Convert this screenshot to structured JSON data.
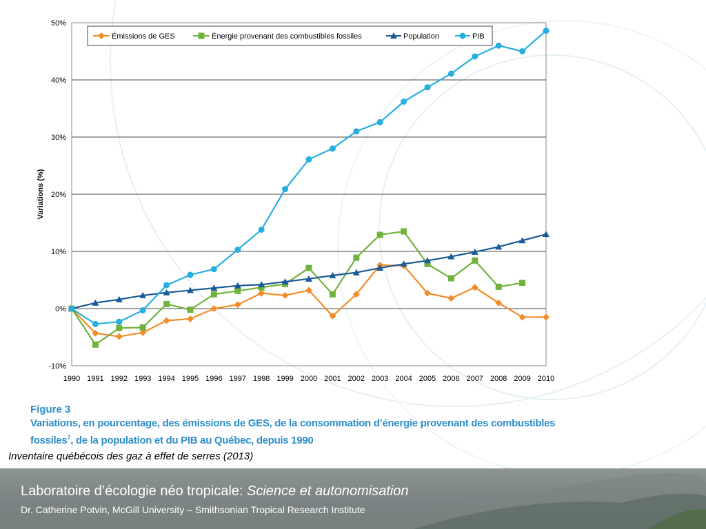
{
  "chart_data": {
    "type": "line",
    "ylabel": "Variations (%)",
    "xlabel": "",
    "ylim": [
      -10,
      50
    ],
    "yticks": [
      -10,
      0,
      10,
      20,
      30,
      40,
      50
    ],
    "ytick_labels": [
      "-10%",
      "0%",
      "10%",
      "20%",
      "30%",
      "40%",
      "50%"
    ],
    "grid": "horizontal",
    "legend_position": "top",
    "x": [
      "1990",
      "1991",
      "1992",
      "1993",
      "1994",
      "1995",
      "1996",
      "1997",
      "1998",
      "1999",
      "2000",
      "2001",
      "2002",
      "2003",
      "2004",
      "2005",
      "2006",
      "2007",
      "2008",
      "2009",
      "2010"
    ],
    "series": [
      {
        "name": "Émissions de GES",
        "color": "#f28c28",
        "marker": "diamond",
        "values": [
          0,
          -4.3,
          -4.9,
          -4.2,
          -2.1,
          -1.8,
          0,
          0.7,
          2.7,
          2.3,
          3.2,
          -1.3,
          2.5,
          7.6,
          7.5,
          2.7,
          1.8,
          3.7,
          1.0,
          -1.5,
          -1.5
        ]
      },
      {
        "name": "Énergie provenant des combustibles fossiles",
        "color": "#70b33c",
        "marker": "square",
        "values": [
          0,
          -6.3,
          -3.4,
          -3.3,
          0.8,
          -0.2,
          2.5,
          3.1,
          3.7,
          4.3,
          7.1,
          2.5,
          8.9,
          12.9,
          13.5,
          7.8,
          5.3,
          8.4,
          3.8,
          4.5,
          null
        ]
      },
      {
        "name": "Population",
        "color": "#1a5a96",
        "marker": "triangle",
        "values": [
          0,
          1.0,
          1.6,
          2.3,
          2.8,
          3.2,
          3.6,
          4.0,
          4.2,
          4.7,
          5.2,
          5.8,
          6.3,
          7.1,
          7.8,
          8.4,
          9.1,
          9.9,
          10.8,
          11.9,
          13.0
        ]
      },
      {
        "name": "PIB",
        "color": "#27aee0",
        "marker": "circle",
        "values": [
          0,
          -2.7,
          -2.3,
          -0.3,
          4.1,
          5.9,
          6.9,
          10.3,
          13.8,
          20.9,
          26.1,
          28.0,
          31.0,
          32.6,
          36.2,
          38.7,
          41.1,
          44.1,
          46.0,
          45.0,
          48.6
        ]
      }
    ]
  },
  "caption": {
    "figure_label": "Figure 3",
    "line1": "Variations, en pourcentage, des émissions de GES, de la consommation d’énergie provenant des combustibles",
    "line2_pre": "fossiles",
    "line2_sup": "7",
    "line2_post": ", de la population et du PIB au Québec, depuis 1990"
  },
  "source": "Inventaire québécois des gaz à effet de serres (2013)",
  "footer": {
    "title": "Laboratoire d’écologie néo tropicale: ",
    "title_italic": "Science et autonomisation",
    "subtitle": "Dr. Catherine Potvin, McGill University – Smithsonian Tropical Research Institute"
  }
}
